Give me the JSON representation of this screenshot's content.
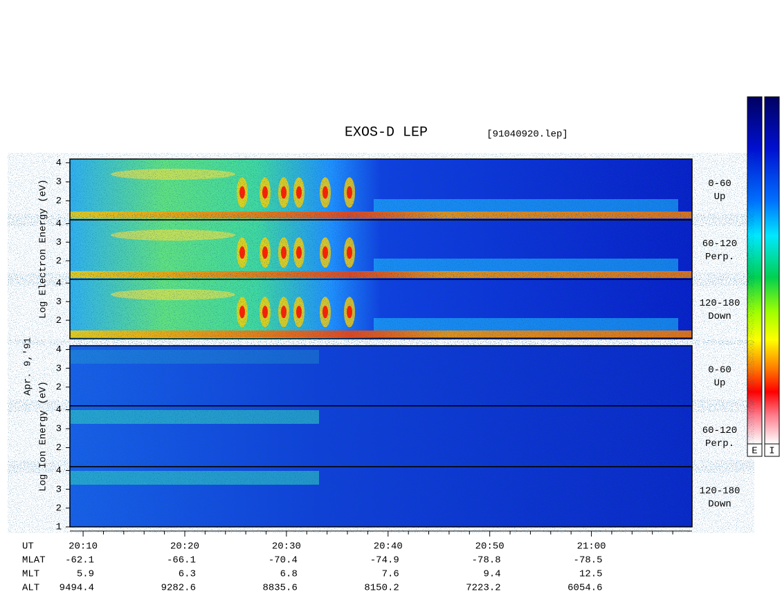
{
  "title": "EXOS-D LEP",
  "file": "[91040920.lep]",
  "date": "Apr. 9,'91",
  "groups": [
    {
      "label": "Log Electron Energy (eV)"
    },
    {
      "label": "Log Ion Energy (eV)"
    }
  ],
  "panels": [
    {
      "group": 0,
      "angle": "0-60",
      "direction": "Up",
      "ylim": [
        1,
        4.2
      ],
      "yticks": [
        2,
        3,
        4
      ]
    },
    {
      "group": 0,
      "angle": "60-120",
      "direction": "Perp.",
      "ylim": [
        1,
        4.2
      ],
      "yticks": [
        2,
        3,
        4
      ]
    },
    {
      "group": 0,
      "angle": "120-180",
      "direction": "Down",
      "ylim": [
        1,
        4.2
      ],
      "yticks": [
        2,
        3,
        4
      ]
    },
    {
      "group": 1,
      "angle": "0-60",
      "direction": "Up",
      "ylim": [
        1,
        4.2
      ],
      "yticks": [
        2,
        3,
        4
      ]
    },
    {
      "group": 1,
      "angle": "60-120",
      "direction": "Perp.",
      "ylim": [
        1,
        4.2
      ],
      "yticks": [
        2,
        3,
        4
      ]
    },
    {
      "group": 1,
      "angle": "120-180",
      "direction": "Down",
      "ylim": [
        1,
        4.2
      ],
      "yticks": [
        1,
        2,
        3,
        4
      ]
    }
  ],
  "x_axis": {
    "name": "UT",
    "xlim": [
      1208.7,
      1269.9
    ],
    "ticks": [
      {
        "value": 1210,
        "label": "20:10"
      },
      {
        "value": 1220,
        "label": "20:20"
      },
      {
        "value": 1230,
        "label": "20:30"
      },
      {
        "value": 1240,
        "label": "20:40"
      },
      {
        "value": 1250,
        "label": "20:50"
      },
      {
        "value": 1260,
        "label": "21:00"
      }
    ],
    "minor_ticks": [
      1212,
      1214,
      1216,
      1218,
      1222,
      1224,
      1226,
      1228,
      1232,
      1234,
      1236,
      1238,
      1242,
      1244,
      1246,
      1248,
      1252,
      1254,
      1256,
      1258,
      1262,
      1264,
      1266,
      1268
    ]
  },
  "ephemeris": [
    {
      "name": "MLAT",
      "values": [
        -62.1,
        -66.1,
        -70.4,
        -74.9,
        -78.8,
        -78.5
      ]
    },
    {
      "name": "MLT",
      "values": [
        5.9,
        6.3,
        6.8,
        7.6,
        9.4,
        12.5
      ]
    },
    {
      "name": "ALT",
      "values": [
        9494.4,
        9282.6,
        8835.6,
        8150.2,
        7223.2,
        6054.6
      ]
    }
  ],
  "colorbar": {
    "labels": [
      "E",
      "I"
    ]
  }
}
